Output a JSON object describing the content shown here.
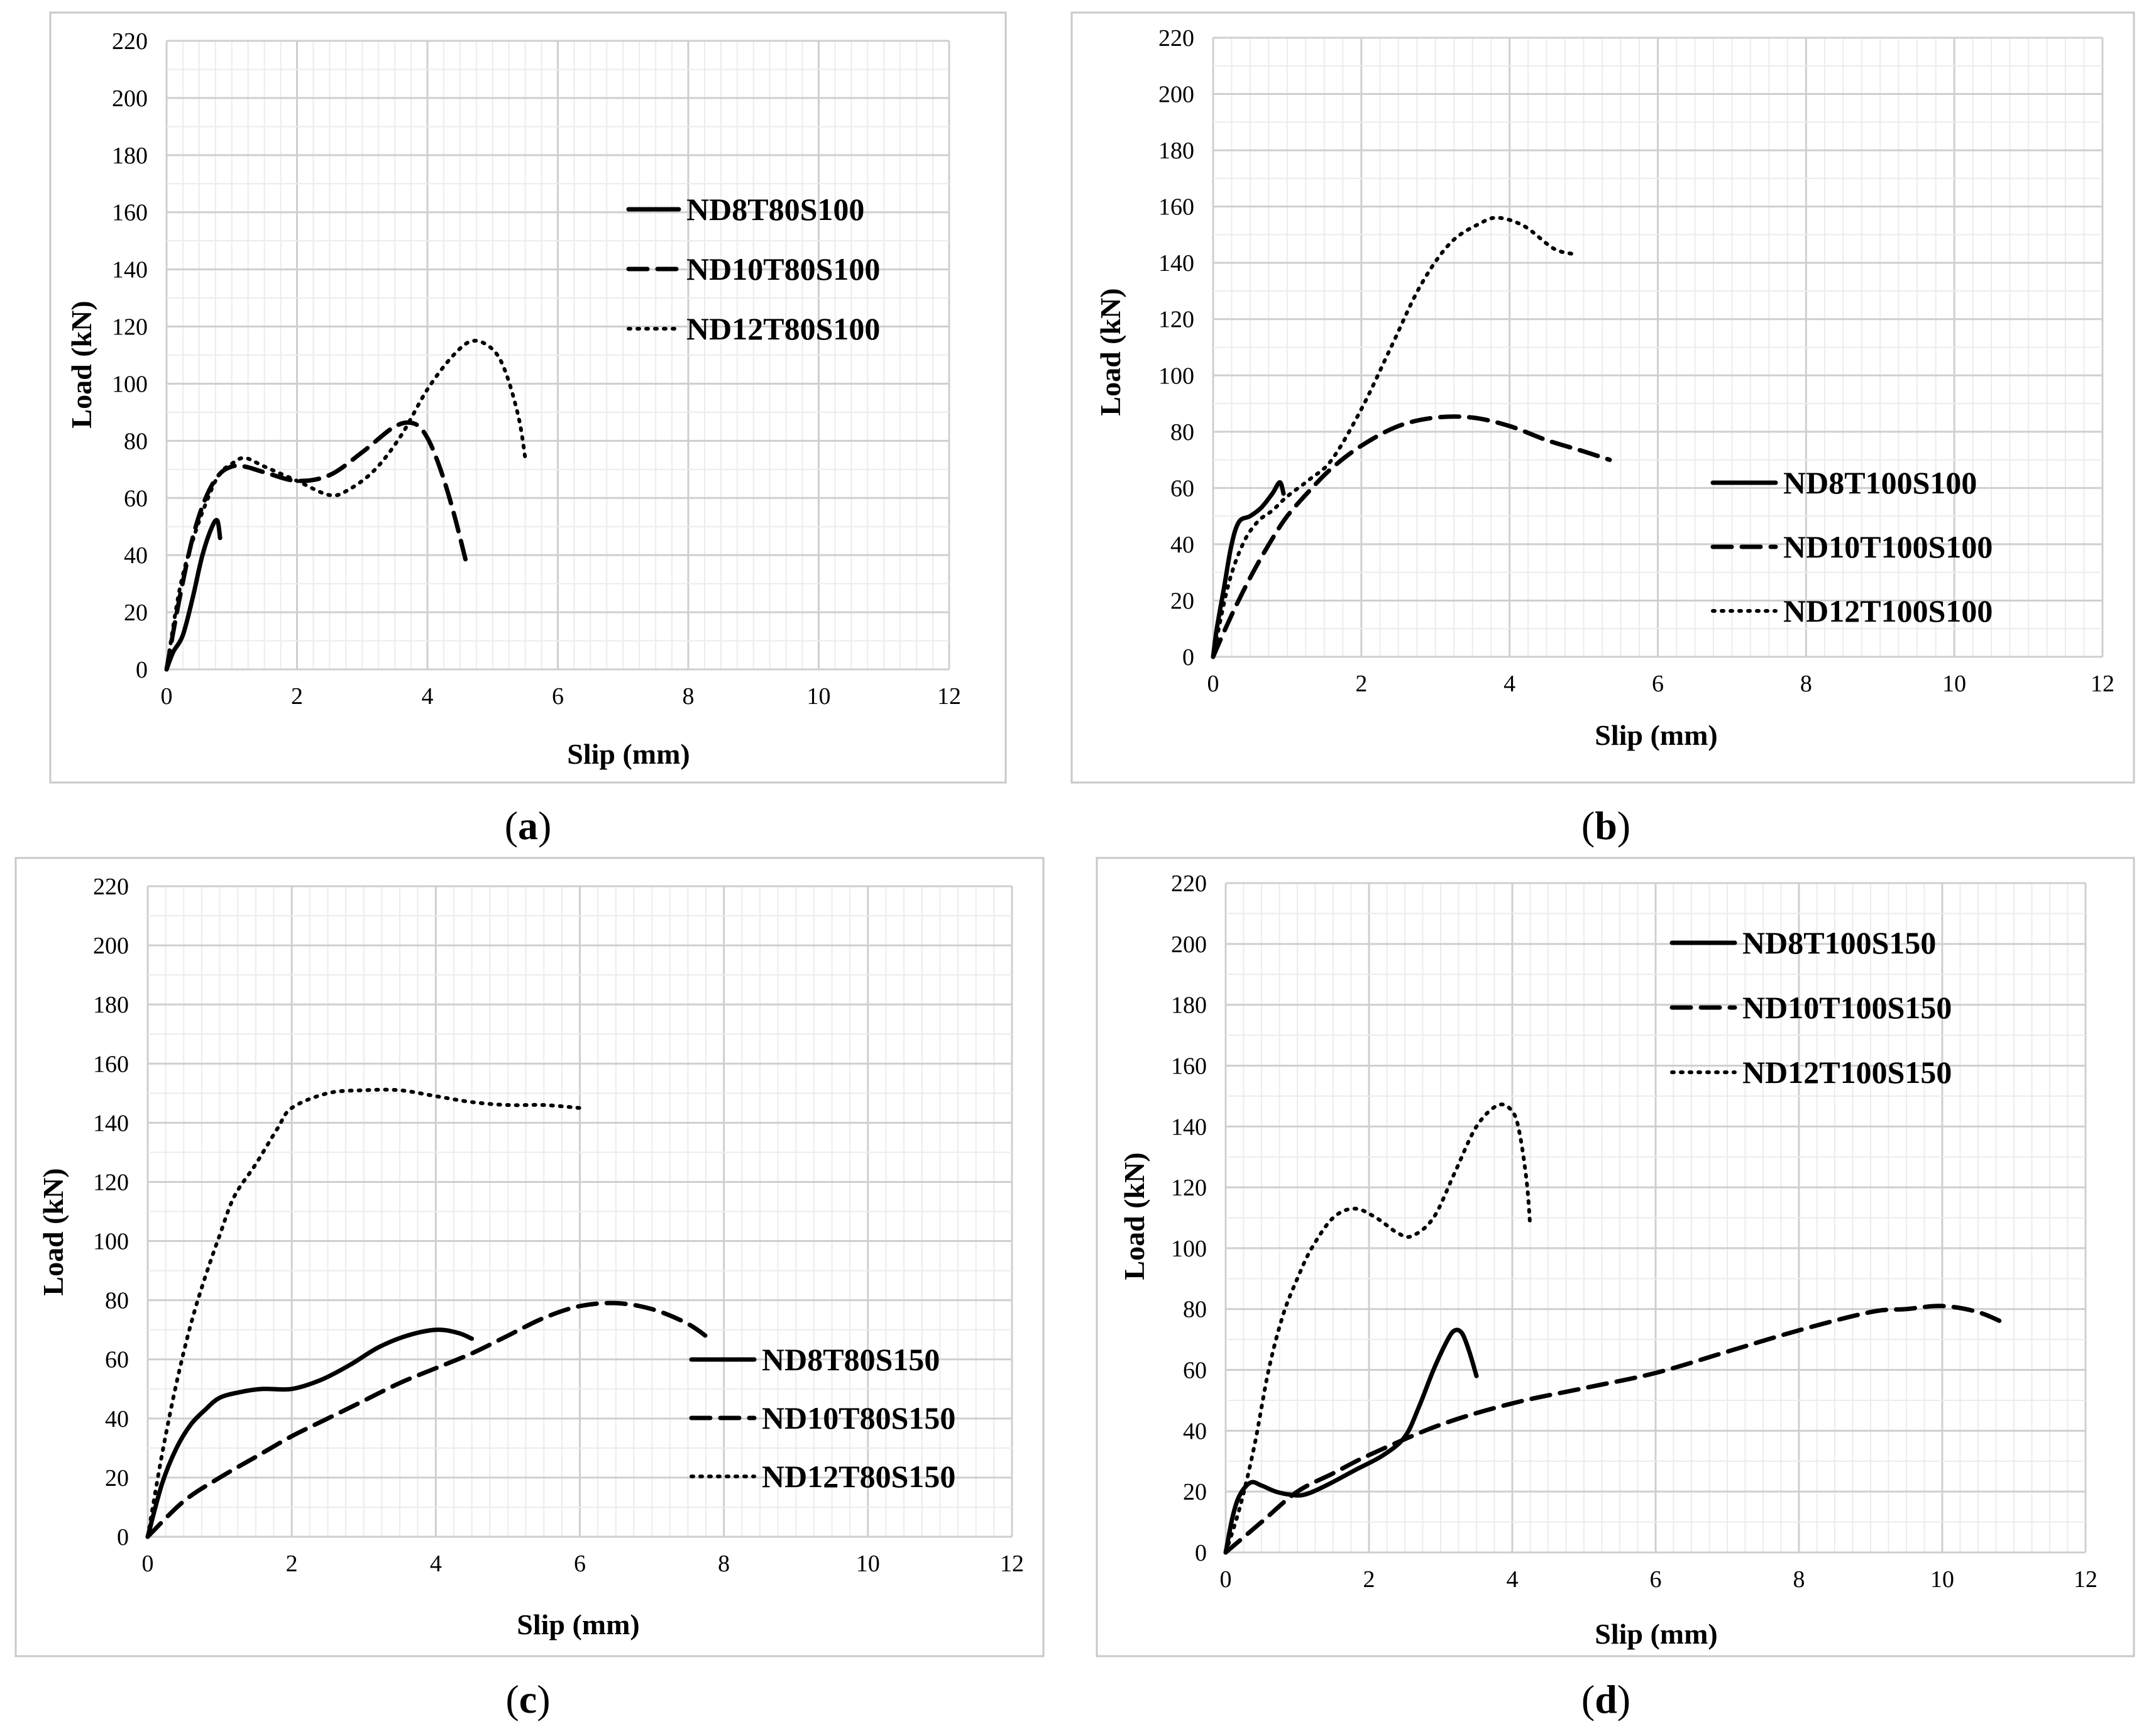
{
  "chart_data": [
    {
      "type": "line",
      "panel_label": "a",
      "xlabel": "Slip (mm)",
      "ylabel": "Load (kN)",
      "xlim": [
        0,
        12
      ],
      "ylim": [
        0,
        220
      ],
      "xticks": [
        "0",
        "2",
        "4",
        "6",
        "8",
        "10",
        "12"
      ],
      "yticks": [
        "0",
        "20",
        "40",
        "60",
        "80",
        "100",
        "120",
        "140",
        "160",
        "180",
        "200",
        "220"
      ],
      "grid": true,
      "legend_position": "upper-right",
      "series": [
        {
          "name": "ND8T80S100",
          "style": "solid",
          "x": [
            0,
            0.1,
            0.25,
            0.4,
            0.55,
            0.7,
            0.78,
            0.82
          ],
          "y": [
            0,
            6,
            12,
            25,
            40,
            50,
            52,
            46
          ]
        },
        {
          "name": "ND10T80S100",
          "style": "dashed",
          "x": [
            0,
            0.2,
            0.4,
            0.6,
            0.8,
            1.0,
            1.2,
            1.5,
            2.0,
            2.5,
            3.0,
            3.5,
            3.8,
            4.0,
            4.2,
            4.4,
            4.6
          ],
          "y": [
            0,
            25,
            46,
            60,
            68,
            71,
            71,
            69,
            66,
            68,
            76,
            85,
            86,
            81,
            70,
            55,
            37
          ]
        },
        {
          "name": "ND12T80S100",
          "style": "dotted",
          "x": [
            0,
            0.2,
            0.4,
            0.6,
            0.8,
            1.0,
            1.2,
            1.5,
            2.0,
            2.5,
            2.8,
            3.2,
            3.6,
            4.0,
            4.4,
            4.7,
            5.0,
            5.2,
            5.4,
            5.5
          ],
          "y": [
            0,
            28,
            45,
            58,
            68,
            72,
            74,
            71,
            66,
            61,
            63,
            70,
            82,
            98,
            110,
            115,
            112,
            104,
            88,
            74
          ]
        }
      ]
    },
    {
      "type": "line",
      "panel_label": "b",
      "xlabel": "Slip (mm)",
      "ylabel": "Load (kN)",
      "xlim": [
        0,
        12
      ],
      "ylim": [
        0,
        220
      ],
      "xticks": [
        "0",
        "2",
        "4",
        "6",
        "8",
        "10",
        "12"
      ],
      "yticks": [
        "0",
        "20",
        "40",
        "60",
        "80",
        "100",
        "120",
        "140",
        "160",
        "180",
        "200",
        "220"
      ],
      "grid": true,
      "legend_position": "right",
      "series": [
        {
          "name": "ND8T100S100",
          "style": "solid",
          "x": [
            0,
            0.05,
            0.15,
            0.25,
            0.35,
            0.5,
            0.65,
            0.8,
            0.9,
            0.95
          ],
          "y": [
            0,
            10,
            25,
            40,
            48,
            50,
            53,
            58,
            62,
            58
          ]
        },
        {
          "name": "ND10T100S100",
          "style": "dashed",
          "x": [
            0,
            0.2,
            0.4,
            0.6,
            0.8,
            1.0,
            1.3,
            1.6,
            2.0,
            2.5,
            3.0,
            3.5,
            4.0,
            4.5,
            5.0,
            5.35
          ],
          "y": [
            0,
            12,
            23,
            33,
            42,
            50,
            59,
            67,
            75,
            82,
            85,
            85,
            82,
            77,
            73,
            70
          ]
        },
        {
          "name": "ND12T100S100",
          "style": "dotted",
          "x": [
            0,
            0.2,
            0.4,
            0.6,
            0.8,
            1.0,
            1.3,
            1.6,
            2.0,
            2.4,
            2.8,
            3.2,
            3.6,
            3.85,
            4.2,
            4.6,
            4.9
          ],
          "y": [
            0,
            25,
            40,
            48,
            52,
            57,
            63,
            70,
            88,
            110,
            132,
            147,
            154,
            156,
            153,
            145,
            143
          ]
        }
      ]
    },
    {
      "type": "line",
      "panel_label": "c",
      "xlabel": "Slip (mm)",
      "ylabel": "Load (kN)",
      "xlim": [
        0,
        12
      ],
      "ylim": [
        0,
        220
      ],
      "xticks": [
        "0",
        "2",
        "4",
        "6",
        "8",
        "10",
        "12"
      ],
      "yticks": [
        "0",
        "20",
        "40",
        "60",
        "80",
        "100",
        "120",
        "140",
        "160",
        "180",
        "200",
        "220"
      ],
      "grid": true,
      "legend_position": "right",
      "series": [
        {
          "name": "ND8T80S150",
          "style": "solid",
          "x": [
            0,
            0.2,
            0.4,
            0.6,
            0.8,
            1.0,
            1.3,
            1.6,
            2.0,
            2.4,
            2.8,
            3.2,
            3.6,
            4.0,
            4.3,
            4.5
          ],
          "y": [
            0,
            18,
            30,
            38,
            43,
            47,
            49,
            50,
            50,
            53,
            58,
            64,
            68,
            70,
            69,
            67
          ]
        },
        {
          "name": "ND10T80S150",
          "style": "dashed",
          "x": [
            0,
            0.5,
            1.0,
            1.5,
            2.0,
            2.5,
            3.0,
            3.5,
            4.0,
            4.5,
            5.0,
            5.5,
            6.0,
            6.5,
            7.0,
            7.5,
            7.85
          ],
          "y": [
            0,
            12,
            20,
            27,
            34,
            40,
            46,
            52,
            57,
            62,
            68,
            74,
            78,
            79,
            77,
            72,
            66
          ]
        },
        {
          "name": "ND12T80S150",
          "style": "dotted",
          "x": [
            0,
            0.2,
            0.4,
            0.6,
            0.8,
            1.0,
            1.2,
            1.5,
            1.8,
            2.0,
            2.5,
            3.0,
            3.5,
            4.0,
            4.5,
            5.0,
            5.5,
            6.0
          ],
          "y": [
            0,
            28,
            52,
            72,
            88,
            102,
            115,
            126,
            138,
            145,
            150,
            151,
            151,
            149,
            147,
            146,
            146,
            145
          ]
        }
      ]
    },
    {
      "type": "line",
      "panel_label": "d",
      "xlabel": "Slip (mm)",
      "ylabel": "Load (kN)",
      "xlim": [
        0,
        12
      ],
      "ylim": [
        0,
        220
      ],
      "xticks": [
        "0",
        "2",
        "4",
        "6",
        "8",
        "10",
        "12"
      ],
      "yticks": [
        "0",
        "20",
        "40",
        "60",
        "80",
        "100",
        "120",
        "140",
        "160",
        "180",
        "200",
        "220"
      ],
      "grid": true,
      "legend_position": "upper-right",
      "series": [
        {
          "name": "ND8T100S150",
          "style": "solid",
          "x": [
            0,
            0.1,
            0.2,
            0.35,
            0.5,
            0.7,
            0.9,
            1.1,
            1.4,
            1.8,
            2.2,
            2.5,
            2.7,
            2.9,
            3.1,
            3.2,
            3.3,
            3.4,
            3.5
          ],
          "y": [
            0,
            12,
            19,
            23,
            22,
            20,
            19,
            19,
            22,
            27,
            32,
            38,
            48,
            60,
            70,
            73,
            72,
            66,
            58
          ]
        },
        {
          "name": "ND10T100S150",
          "style": "dashed",
          "x": [
            0,
            0.5,
            1.0,
            1.5,
            2.0,
            3.0,
            4.0,
            5.0,
            6.0,
            7.0,
            8.0,
            9.0,
            9.5,
            10.0,
            10.5,
            10.9
          ],
          "y": [
            0,
            10,
            20,
            26,
            32,
            42,
            49,
            54,
            59,
            66,
            73,
            79,
            80,
            81,
            79,
            75
          ]
        },
        {
          "name": "ND12T100S150",
          "style": "dotted",
          "x": [
            0,
            0.2,
            0.4,
            0.6,
            0.8,
            1.0,
            1.2,
            1.5,
            1.8,
            2.1,
            2.4,
            2.6,
            2.9,
            3.2,
            3.5,
            3.8,
            4.0,
            4.1,
            4.2,
            4.25
          ],
          "y": [
            0,
            15,
            35,
            60,
            78,
            90,
            100,
            110,
            113,
            110,
            105,
            104,
            110,
            125,
            140,
            147,
            145,
            138,
            122,
            107
          ]
        }
      ]
    }
  ]
}
